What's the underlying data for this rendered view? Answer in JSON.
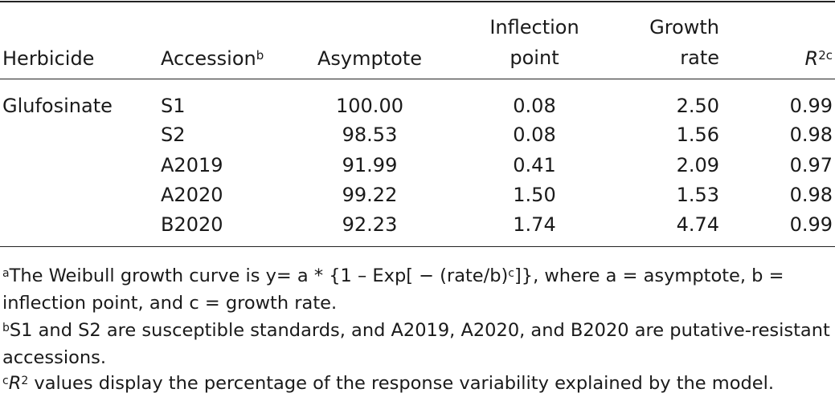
{
  "headers": {
    "herbicide": "Herbicide",
    "accession": "Accession",
    "accession_sup": "b",
    "asymptote": "Asymptote",
    "inflection_line1": "Inflection",
    "inflection_line2": "point",
    "growth_line1": "Growth",
    "growth_line2": "rate",
    "r2": "R",
    "r2_sup": "2c"
  },
  "herbicide_value": "Glufosinate",
  "rows": [
    {
      "accession": "S1",
      "asymptote": "100.00",
      "inflection": "0.08",
      "growth": "2.50",
      "r2": "0.99"
    },
    {
      "accession": "S2",
      "asymptote": "98.53",
      "inflection": "0.08",
      "growth": "1.56",
      "r2": "0.98"
    },
    {
      "accession": "A2019",
      "asymptote": "91.99",
      "inflection": "0.41",
      "growth": "2.09",
      "r2": "0.97"
    },
    {
      "accession": "A2020",
      "asymptote": "99.22",
      "inflection": "1.50",
      "growth": "1.53",
      "r2": "0.98"
    },
    {
      "accession": "B2020",
      "asymptote": "92.23",
      "inflection": "1.74",
      "growth": "4.74",
      "r2": "0.99"
    }
  ],
  "footnotes": {
    "a_mark": "a",
    "a_text1": "The Weibull growth curve is y= a * {1 – Exp[ − (rate/b)",
    "a_sup": "c",
    "a_text2": "]}, where a = asymptote, b = inflection point, and c = growth rate.",
    "b_mark": "b",
    "b_text": "S1 and S2 are susceptible standards, and A2019, A2020, and B2020 are putative-resistant accessions.",
    "c_mark": "c",
    "c_r": "R",
    "c_sup": "2",
    "c_text": " values display the percentage of the response variability explained by the model."
  }
}
